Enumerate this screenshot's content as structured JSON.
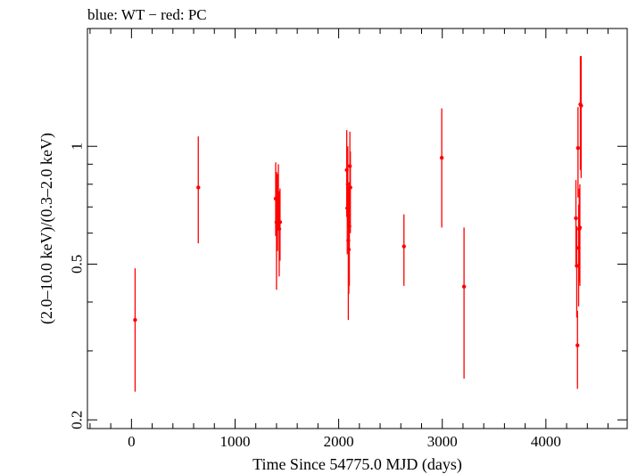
{
  "chart_data": {
    "type": "scatter",
    "title": "blue: WT − red: PC",
    "xlabel": "Time Since 54775.0 MJD (days)",
    "ylabel": "(2.0–10.0 keV)/(0.3–2.0 keV)",
    "xlim": [
      -425,
      4785
    ],
    "ylim": [
      0.19,
      2.0
    ],
    "yscale": "log",
    "x_ticks": [
      0,
      1000,
      2000,
      3000,
      4000
    ],
    "x_tick_labels": [
      "0",
      "1000",
      "2000",
      "3000",
      "4000"
    ],
    "y_ticks": [
      0.2,
      0.5,
      1
    ],
    "y_tick_labels": [
      "0.2",
      "0.5",
      "1"
    ],
    "y_minor_ticks": [
      0.3,
      0.4,
      0.6,
      0.7,
      0.8,
      0.9,
      2.0
    ],
    "grid": false,
    "series": [
      {
        "name": "PC",
        "color": "#ff0000",
        "points": [
          {
            "x": 35,
            "y": 0.36,
            "ylo": 0.236,
            "yhi": 0.488
          },
          {
            "x": 645,
            "y": 0.785,
            "ylo": 0.565,
            "yhi": 1.06
          },
          {
            "x": 1392,
            "y": 0.735,
            "ylo": 0.59,
            "yhi": 0.91
          },
          {
            "x": 1400,
            "y": 0.64,
            "ylo": 0.43,
            "yhi": 0.86
          },
          {
            "x": 1410,
            "y": 0.695,
            "ylo": 0.54,
            "yhi": 0.85
          },
          {
            "x": 1418,
            "y": 0.76,
            "ylo": 0.62,
            "yhi": 0.9
          },
          {
            "x": 1426,
            "y": 0.615,
            "ylo": 0.465,
            "yhi": 0.765
          },
          {
            "x": 1434,
            "y": 0.64,
            "ylo": 0.51,
            "yhi": 0.78
          },
          {
            "x": 2078,
            "y": 0.87,
            "ylo": 0.66,
            "yhi": 1.1
          },
          {
            "x": 2083,
            "y": 0.695,
            "ylo": 0.53,
            "yhi": 0.87
          },
          {
            "x": 2088,
            "y": 0.8,
            "ylo": 0.62,
            "yhi": 1.0
          },
          {
            "x": 2093,
            "y": 0.575,
            "ylo": 0.36,
            "yhi": 0.79
          },
          {
            "x": 2098,
            "y": 0.545,
            "ylo": 0.42,
            "yhi": 0.67
          },
          {
            "x": 2103,
            "y": 0.625,
            "ylo": 0.44,
            "yhi": 0.81
          },
          {
            "x": 2108,
            "y": 0.89,
            "ylo": 0.69,
            "yhi": 1.09
          },
          {
            "x": 2113,
            "y": 0.785,
            "ylo": 0.6,
            "yhi": 0.97
          },
          {
            "x": 2630,
            "y": 0.555,
            "ylo": 0.44,
            "yhi": 0.67
          },
          {
            "x": 2995,
            "y": 0.935,
            "ylo": 0.62,
            "yhi": 1.25
          },
          {
            "x": 3210,
            "y": 0.438,
            "ylo": 0.255,
            "yhi": 0.62
          },
          {
            "x": 4290,
            "y": 0.655,
            "ylo": 0.49,
            "yhi": 0.82
          },
          {
            "x": 4298,
            "y": 0.495,
            "ylo": 0.365,
            "yhi": 0.625
          },
          {
            "x": 4305,
            "y": 0.31,
            "ylo": 0.24,
            "yhi": 0.38
          },
          {
            "x": 4310,
            "y": 0.99,
            "ylo": 0.74,
            "yhi": 1.26
          },
          {
            "x": 4316,
            "y": 0.55,
            "ylo": 0.39,
            "yhi": 0.71
          },
          {
            "x": 4322,
            "y": 0.615,
            "ylo": 0.45,
            "yhi": 0.78
          },
          {
            "x": 4328,
            "y": 0.62,
            "ylo": 0.44,
            "yhi": 0.8
          },
          {
            "x": 4333,
            "y": 1.28,
            "ylo": 0.87,
            "yhi": 1.7
          },
          {
            "x": 4340,
            "y": 1.27,
            "ylo": 0.83,
            "yhi": 1.7
          }
        ]
      }
    ]
  }
}
